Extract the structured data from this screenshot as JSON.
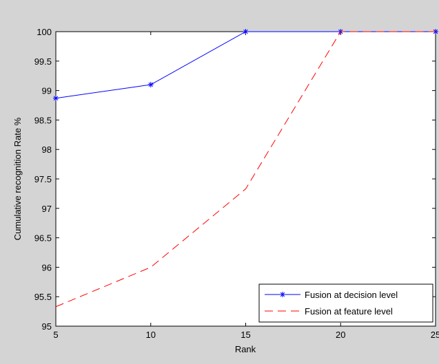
{
  "figure": {
    "background": "#d4d4d4"
  },
  "chart_data": {
    "type": "line",
    "title": "",
    "xlabel": "Rank",
    "ylabel": "Cumulative recognition Rate %",
    "xlim": [
      5,
      25
    ],
    "ylim": [
      95,
      100
    ],
    "xticks": [
      5,
      10,
      15,
      20,
      25
    ],
    "yticks": [
      95,
      95.5,
      96,
      96.5,
      97,
      97.5,
      98,
      98.5,
      99,
      99.5,
      100
    ],
    "grid": false,
    "legend_position": "bottom-right",
    "series": [
      {
        "name": "Fusion at decision level",
        "x": [
          5,
          10,
          15,
          20,
          25
        ],
        "y": [
          98.87,
          99.1,
          100,
          100,
          100
        ],
        "color": "#0000ff",
        "line_style": "solid",
        "marker": "asterisk"
      },
      {
        "name": "Fusion at feature level",
        "x": [
          5,
          10,
          15,
          20,
          25
        ],
        "y": [
          95.33,
          96.0,
          97.33,
          100,
          100
        ],
        "color": "#ff0000",
        "line_style": "dashed",
        "marker": "none"
      }
    ]
  }
}
